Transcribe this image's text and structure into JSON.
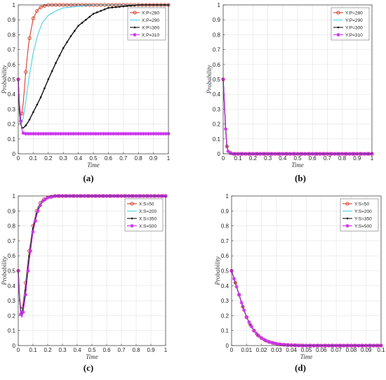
{
  "chart_data": [
    {
      "type": "line",
      "caption": "(a)",
      "xlabel": "Time",
      "ylabel": "Probability",
      "xlim": [
        0,
        1
      ],
      "ylim": [
        0,
        1
      ],
      "xticks": [
        "0",
        "0.1",
        "0.2",
        "0.3",
        "0.4",
        "0.5",
        "0.6",
        "0.7",
        "0.8",
        "0.9",
        "1"
      ],
      "yticks": [
        "0",
        "0.1",
        "0.2",
        "0.3",
        "0.4",
        "0.5",
        "0.6",
        "0.7",
        "0.8",
        "0.9",
        "1"
      ],
      "grid": true,
      "legend_position": "top-right",
      "series": [
        {
          "name": "X:P=280",
          "color": "#d6402b",
          "marker": "circle",
          "x": [
            0,
            0.01,
            0.02,
            0.03,
            0.05,
            0.07,
            0.1,
            0.13,
            0.16,
            0.2,
            0.25,
            0.3,
            0.4,
            0.5,
            0.6,
            0.7,
            0.8,
            0.9,
            1
          ],
          "y": [
            0.5,
            0.3,
            0.24,
            0.3,
            0.55,
            0.75,
            0.91,
            0.97,
            0.99,
            1,
            1,
            1,
            1,
            1,
            1,
            1,
            1,
            1,
            1
          ]
        },
        {
          "name": "X:P=290",
          "color": "#4fd0e4",
          "marker": "none",
          "x": [
            0,
            0.01,
            0.02,
            0.03,
            0.05,
            0.07,
            0.1,
            0.13,
            0.16,
            0.2,
            0.25,
            0.3,
            0.4,
            0.5,
            0.6,
            0.7,
            0.8,
            0.9,
            1
          ],
          "y": [
            0.5,
            0.28,
            0.2,
            0.22,
            0.35,
            0.5,
            0.68,
            0.8,
            0.88,
            0.93,
            0.96,
            0.98,
            0.99,
            1,
            1,
            1,
            1,
            1,
            1
          ]
        },
        {
          "name": "X:P=300",
          "color": "#111111",
          "marker": "point",
          "x": [
            0,
            0.01,
            0.02,
            0.03,
            0.05,
            0.07,
            0.1,
            0.15,
            0.2,
            0.25,
            0.3,
            0.35,
            0.4,
            0.5,
            0.6,
            0.7,
            0.8,
            0.9,
            1
          ],
          "y": [
            0.5,
            0.24,
            0.18,
            0.17,
            0.19,
            0.22,
            0.28,
            0.38,
            0.5,
            0.61,
            0.71,
            0.79,
            0.86,
            0.94,
            0.98,
            0.99,
            1,
            1,
            1
          ]
        },
        {
          "name": "X:P=310",
          "color": "#cc33ee",
          "marker": "asterisk",
          "x": [
            0,
            0.01,
            0.02,
            0.03,
            0.05,
            0.1,
            0.2,
            0.3,
            0.4,
            0.5,
            0.6,
            0.7,
            0.8,
            0.9,
            1
          ],
          "y": [
            0.5,
            0.3,
            0.18,
            0.14,
            0.135,
            0.135,
            0.135,
            0.135,
            0.135,
            0.135,
            0.135,
            0.135,
            0.135,
            0.135,
            0.135
          ]
        }
      ]
    },
    {
      "type": "line",
      "caption": "(b)",
      "xlabel": "Time",
      "ylabel": "Probability",
      "xlim": [
        0,
        1
      ],
      "ylim": [
        0,
        1
      ],
      "xticks": [
        "0",
        "0.1",
        "0.2",
        "0.3",
        "0.4",
        "0.5",
        "0.6",
        "0.7",
        "0.8",
        "0.9",
        "1"
      ],
      "yticks": [
        "0",
        "0.1",
        "0.2",
        "0.3",
        "0.4",
        "0.5",
        "0.6",
        "0.7",
        "0.8",
        "0.9",
        "1"
      ],
      "grid": true,
      "legend_position": "top-right",
      "series": [
        {
          "name": "Y:P=280",
          "color": "#d6402b",
          "marker": "circle",
          "x": [
            0,
            0.005,
            0.01,
            0.015,
            0.02,
            0.025,
            0.03,
            0.04,
            0.06,
            0.1,
            0.2,
            0.3,
            0.4,
            0.5,
            0.6,
            0.7,
            0.8,
            0.9,
            1
          ],
          "y": [
            0.5,
            0.4,
            0.3,
            0.2,
            0.1,
            0.05,
            0.02,
            0.01,
            0,
            0,
            0,
            0,
            0,
            0,
            0,
            0,
            0,
            0,
            0
          ]
        },
        {
          "name": "Y:P=290",
          "color": "#4fd0e4",
          "marker": "none",
          "x": [
            0,
            0.005,
            0.01,
            0.015,
            0.02,
            0.025,
            0.03,
            0.04,
            0.06,
            0.1,
            0.2,
            0.3,
            0.4,
            0.5,
            0.6,
            0.7,
            0.8,
            0.9,
            1
          ],
          "y": [
            0.5,
            0.4,
            0.3,
            0.2,
            0.1,
            0.05,
            0.02,
            0.01,
            0,
            0,
            0,
            0,
            0,
            0,
            0,
            0,
            0,
            0,
            0
          ]
        },
        {
          "name": "Y:P=300",
          "color": "#111111",
          "marker": "point",
          "x": [
            0,
            0.005,
            0.01,
            0.015,
            0.02,
            0.025,
            0.03,
            0.04,
            0.06,
            0.1,
            0.2,
            0.3,
            0.4,
            0.5,
            0.6,
            0.7,
            0.8,
            0.9,
            1
          ],
          "y": [
            0.5,
            0.4,
            0.3,
            0.2,
            0.1,
            0.05,
            0.02,
            0.01,
            0,
            0,
            0,
            0,
            0,
            0,
            0,
            0,
            0,
            0,
            0
          ]
        },
        {
          "name": "Y:P=310",
          "color": "#cc33ee",
          "marker": "asterisk",
          "x": [
            0,
            0.005,
            0.01,
            0.015,
            0.02,
            0.025,
            0.03,
            0.04,
            0.06,
            0.1,
            0.15,
            0.2,
            0.25,
            0.3,
            0.35,
            0.4,
            0.45,
            0.5,
            0.55,
            0.6,
            0.65,
            0.7,
            0.75,
            0.8,
            0.85,
            0.9,
            0.95,
            1
          ],
          "y": [
            0.5,
            0.4,
            0.3,
            0.2,
            0.1,
            0.05,
            0.02,
            0.01,
            0,
            0,
            0,
            0,
            0,
            0,
            0,
            0,
            0,
            0,
            0,
            0,
            0,
            0,
            0,
            0,
            0,
            0,
            0,
            0
          ]
        }
      ]
    },
    {
      "type": "line",
      "caption": "(c)",
      "xlabel": "Time",
      "ylabel": "Probability",
      "xlim": [
        0,
        1
      ],
      "ylim": [
        0,
        1
      ],
      "xticks": [
        "0",
        "0.1",
        "0.2",
        "0.3",
        "0.4",
        "0.5",
        "0.6",
        "0.7",
        "0.8",
        "0.9",
        "1"
      ],
      "yticks": [
        "0",
        "0.1",
        "0.2",
        "0.3",
        "0.4",
        "0.5",
        "0.6",
        "0.7",
        "0.8",
        "0.9",
        "1"
      ],
      "grid": true,
      "legend_position": "top-right",
      "series": [
        {
          "name": "X:S=50",
          "color": "#d6402b",
          "marker": "circle",
          "x": [
            0,
            0.01,
            0.02,
            0.03,
            0.05,
            0.07,
            0.1,
            0.13,
            0.16,
            0.2,
            0.25,
            0.3,
            0.4,
            0.5,
            0.6,
            0.7,
            0.8,
            0.9,
            1
          ],
          "y": [
            0.5,
            0.3,
            0.23,
            0.26,
            0.42,
            0.6,
            0.8,
            0.92,
            0.97,
            0.99,
            1,
            1,
            1,
            1,
            1,
            1,
            1,
            1,
            1
          ]
        },
        {
          "name": "X:S=200",
          "color": "#4fd0e4",
          "marker": "none",
          "x": [
            0,
            0.01,
            0.02,
            0.03,
            0.05,
            0.07,
            0.1,
            0.13,
            0.16,
            0.2,
            0.25,
            0.3,
            0.4,
            0.5,
            0.6,
            0.7,
            0.8,
            0.9,
            1
          ],
          "y": [
            0.5,
            0.29,
            0.21,
            0.24,
            0.4,
            0.58,
            0.79,
            0.91,
            0.97,
            0.99,
            1,
            1,
            1,
            1,
            1,
            1,
            1,
            1,
            1
          ]
        },
        {
          "name": "X:S=350",
          "color": "#111111",
          "marker": "point",
          "x": [
            0,
            0.01,
            0.02,
            0.03,
            0.05,
            0.07,
            0.1,
            0.13,
            0.16,
            0.2,
            0.25,
            0.3,
            0.4,
            0.5,
            0.6,
            0.7,
            0.8,
            0.9,
            1
          ],
          "y": [
            0.5,
            0.28,
            0.2,
            0.22,
            0.37,
            0.56,
            0.78,
            0.9,
            0.96,
            0.99,
            1,
            1,
            1,
            1,
            1,
            1,
            1,
            1,
            1
          ]
        },
        {
          "name": "X:S=500",
          "color": "#cc33ee",
          "marker": "asterisk",
          "x": [
            0,
            0.01,
            0.02,
            0.03,
            0.05,
            0.07,
            0.1,
            0.13,
            0.16,
            0.2,
            0.25,
            0.3,
            0.35,
            0.4,
            0.45,
            0.5,
            0.55,
            0.6,
            0.65,
            0.7,
            0.75,
            0.8,
            0.85,
            0.9,
            0.95,
            1
          ],
          "y": [
            0.5,
            0.27,
            0.18,
            0.2,
            0.34,
            0.53,
            0.76,
            0.89,
            0.96,
            0.99,
            1,
            1,
            1,
            1,
            1,
            1,
            1,
            1,
            1,
            1,
            1,
            1,
            1,
            1,
            1,
            1
          ]
        }
      ]
    },
    {
      "type": "line",
      "caption": "(d)",
      "xlabel": "Time",
      "ylabel": "Probability",
      "xlim": [
        0,
        0.1
      ],
      "ylim": [
        0,
        1
      ],
      "xticks": [
        "0",
        "0.01",
        "0.02",
        "0.03",
        "0.04",
        "0.05",
        "0.06",
        "0.07",
        "0.08",
        "0.09",
        "0.1"
      ],
      "yticks": [
        "0",
        "0.1",
        "0.2",
        "0.3",
        "0.4",
        "0.5",
        "0.6",
        "0.7",
        "0.8",
        "0.9",
        "1"
      ],
      "grid": true,
      "legend_position": "top-right",
      "series": [
        {
          "name": "Y:S=50",
          "color": "#d6402b",
          "marker": "circle",
          "x": [
            0,
            0.0025,
            0.005,
            0.0075,
            0.01,
            0.0125,
            0.015,
            0.0175,
            0.02,
            0.0225,
            0.025,
            0.0275,
            0.03,
            0.0325,
            0.035,
            0.0375,
            0.04,
            0.045,
            0.05,
            0.055,
            0.06,
            0.065,
            0.07,
            0.075,
            0.08,
            0.085,
            0.09,
            0.095,
            0.1
          ],
          "y": [
            0.5,
            0.42,
            0.34,
            0.26,
            0.19,
            0.14,
            0.1,
            0.07,
            0.05,
            0.035,
            0.025,
            0.018,
            0.012,
            0.008,
            0.006,
            0.004,
            0.003,
            0.001,
            0,
            0,
            0,
            0,
            0,
            0,
            0,
            0,
            0,
            0,
            0
          ]
        },
        {
          "name": "Y:S=200",
          "color": "#4fd0e4",
          "marker": "none",
          "x": [
            0,
            0.0025,
            0.005,
            0.0075,
            0.01,
            0.0125,
            0.015,
            0.0175,
            0.02,
            0.0225,
            0.025,
            0.0275,
            0.03,
            0.0325,
            0.035,
            0.0375,
            0.04,
            0.045,
            0.05,
            0.055,
            0.06,
            0.065,
            0.07,
            0.075,
            0.08,
            0.085,
            0.09,
            0.095,
            0.1
          ],
          "y": [
            0.5,
            0.42,
            0.34,
            0.26,
            0.19,
            0.14,
            0.1,
            0.07,
            0.05,
            0.035,
            0.025,
            0.018,
            0.012,
            0.008,
            0.006,
            0.004,
            0.003,
            0.001,
            0,
            0,
            0,
            0,
            0,
            0,
            0,
            0,
            0,
            0,
            0
          ]
        },
        {
          "name": "Y:S=350",
          "color": "#111111",
          "marker": "point",
          "x": [
            0,
            0.0025,
            0.005,
            0.0075,
            0.01,
            0.0125,
            0.015,
            0.0175,
            0.02,
            0.0225,
            0.025,
            0.0275,
            0.03,
            0.0325,
            0.035,
            0.0375,
            0.04,
            0.045,
            0.05,
            0.055,
            0.06,
            0.065,
            0.07,
            0.075,
            0.08,
            0.085,
            0.09,
            0.095,
            0.1
          ],
          "y": [
            0.5,
            0.42,
            0.34,
            0.26,
            0.19,
            0.14,
            0.1,
            0.07,
            0.05,
            0.035,
            0.025,
            0.018,
            0.012,
            0.008,
            0.006,
            0.004,
            0.003,
            0.001,
            0,
            0,
            0,
            0,
            0,
            0,
            0,
            0,
            0,
            0,
            0
          ]
        },
        {
          "name": "Y:S=500",
          "color": "#cc33ee",
          "marker": "asterisk",
          "x": [
            0,
            0.0025,
            0.005,
            0.0075,
            0.01,
            0.0125,
            0.015,
            0.0175,
            0.02,
            0.0225,
            0.025,
            0.0275,
            0.03,
            0.0325,
            0.035,
            0.0375,
            0.04,
            0.045,
            0.05,
            0.055,
            0.06,
            0.065,
            0.07,
            0.075,
            0.08,
            0.085,
            0.09,
            0.095,
            0.1
          ],
          "y": [
            0.5,
            0.42,
            0.34,
            0.26,
            0.19,
            0.14,
            0.1,
            0.07,
            0.05,
            0.035,
            0.025,
            0.018,
            0.012,
            0.008,
            0.006,
            0.004,
            0.003,
            0.001,
            0,
            0,
            0,
            0,
            0,
            0,
            0,
            0,
            0,
            0,
            0
          ]
        }
      ]
    }
  ]
}
